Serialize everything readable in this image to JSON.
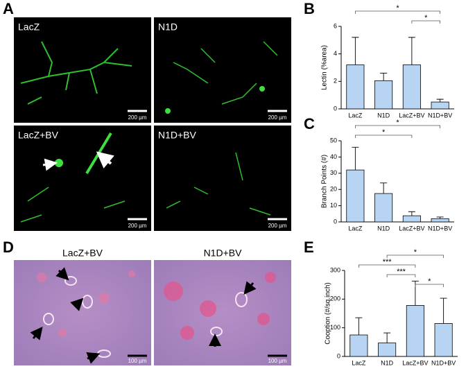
{
  "panel_letters": [
    "A",
    "B",
    "C",
    "D",
    "E"
  ],
  "micrographs": [
    {
      "label": "LacZ",
      "scale_bar": "200 µm"
    },
    {
      "label": "N1D",
      "scale_bar": "200 µm"
    },
    {
      "label": "LacZ+BV",
      "scale_bar": "200 µm"
    },
    {
      "label": "N1D+BV",
      "scale_bar": "200 µm"
    }
  ],
  "histology": [
    {
      "label": "LacZ+BV",
      "scale_bar": "100 µm"
    },
    {
      "label": "N1D+BV",
      "scale_bar": "100 µm"
    }
  ],
  "chart_data": [
    {
      "type": "bar",
      "y_label": "Lectin (%area)",
      "categories": [
        "LacZ",
        "N1D",
        "LacZ+BV",
        "N1D+BV"
      ],
      "values": [
        3.2,
        2.05,
        3.2,
        0.5
      ],
      "errors": [
        2.0,
        0.55,
        2.0,
        0.2
      ],
      "color": "#b7d5f2",
      "ylim": [
        0,
        6
      ],
      "yticks": [
        0,
        2,
        4,
        6
      ],
      "significance": [
        {
          "from": "LacZ",
          "to": "N1D+BV",
          "label": "*"
        },
        {
          "from": "LacZ+BV",
          "to": "N1D+BV",
          "label": "*"
        }
      ]
    },
    {
      "type": "bar",
      "y_label": "Branch Points (#)",
      "categories": [
        "LacZ",
        "N1D",
        "LacZ+BV",
        "N1D+BV"
      ],
      "values": [
        32,
        17.5,
        3.8,
        2.0
      ],
      "errors": [
        14,
        6.5,
        2.5,
        1.0
      ],
      "color": "#b7d5f2",
      "ylim": [
        0,
        50
      ],
      "yticks": [
        0,
        10,
        20,
        30,
        40,
        50
      ],
      "significance": [
        {
          "from": "LacZ",
          "to": "N1D+BV",
          "label": "*"
        },
        {
          "from": "LacZ",
          "to": "LacZ+BV",
          "label": "*"
        }
      ]
    },
    {
      "type": "bar",
      "y_label": "Cooption (#/sq.inch)",
      "categories": [
        "LacZ",
        "N1D",
        "LacZ+BV",
        "N1D+BV"
      ],
      "values": [
        75,
        47,
        178,
        115
      ],
      "errors": [
        60,
        35,
        85,
        88
      ],
      "color": "#b7d5f2",
      "ylim": [
        0,
        300
      ],
      "yticks": [
        0,
        100,
        200,
        300
      ],
      "significance": [
        {
          "from": "N1D",
          "to": "N1D+BV",
          "label": "*"
        },
        {
          "from": "LacZ",
          "to": "LacZ+BV",
          "label": "***"
        },
        {
          "from": "N1D",
          "to": "LacZ+BV",
          "label": "***"
        },
        {
          "from": "LacZ+BV",
          "to": "N1D+BV",
          "label": "*"
        }
      ]
    }
  ]
}
